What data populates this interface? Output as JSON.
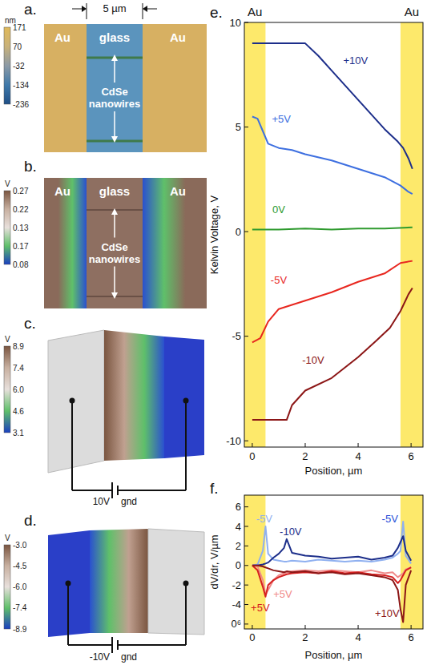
{
  "panels": [
    {
      "label": "a.",
      "texts": [
        "Au",
        "glass",
        "Au",
        "CdSe nanowires"
      ],
      "scale_label": "5 µm",
      "colorbar": {
        "unit": "nm",
        "labels": [
          "171",
          "70",
          "-32",
          "-134",
          "-236"
        ]
      }
    },
    {
      "label": "b.",
      "texts": [
        "Au",
        "glass",
        "Au",
        "CdSe nanowires"
      ],
      "colorbar": {
        "unit": "V",
        "labels": [
          "0.27",
          "0.22",
          "0.13",
          "0.17",
          "0.08"
        ]
      }
    },
    {
      "label": "c.",
      "source": "10V",
      "ground": "gnd",
      "colorbar": {
        "unit": "V",
        "labels": [
          "8.9",
          "7.4",
          "6.0",
          "4.6",
          "3.1"
        ]
      }
    },
    {
      "label": "d.",
      "source": "-10V",
      "ground": "gnd",
      "colorbar": {
        "unit": "V",
        "labels": [
          "-3.0",
          "-4.5",
          "-6.0",
          "-7.4",
          "-8.9"
        ]
      }
    }
  ],
  "chart_data": [
    {
      "type": "line",
      "label": "e.",
      "xlabel": "Position, µm",
      "ylabel": "Kelvin Voltage, V",
      "xlim": [
        -0.3,
        6.45
      ],
      "ylim": [
        -10.3,
        10
      ],
      "xticks": [
        0,
        2,
        4,
        6
      ],
      "yticks": [
        -10,
        -5,
        0,
        5,
        10
      ],
      "regions": [
        {
          "label": "Au",
          "x0": -0.3,
          "x1": 0.5
        },
        {
          "label": "Au",
          "x0": 5.6,
          "x1": 6.45
        }
      ],
      "series": [
        {
          "color": "#1c2e8a",
          "x": [
            0,
            0.5,
            1,
            1.5,
            2,
            2.5,
            3,
            3.5,
            4,
            4.5,
            5,
            5.5,
            5.7,
            5.9,
            6.05
          ],
          "values": [
            9,
            9,
            9,
            9,
            9,
            8.4,
            7.7,
            7.0,
            6.3,
            5.6,
            4.9,
            4.3,
            4.0,
            3.5,
            3.0
          ]
        },
        {
          "color": "#3d6fe0",
          "x": [
            0,
            0.2,
            0.4,
            0.6,
            1,
            1.5,
            2,
            3,
            4,
            5,
            5.6,
            5.9,
            6.05
          ],
          "values": [
            5.5,
            5.4,
            4.8,
            4.2,
            4.0,
            3.9,
            3.7,
            3.4,
            3.0,
            2.6,
            2.2,
            1.9,
            1.8
          ]
        },
        {
          "color": "#2e9a2e",
          "x": [
            0,
            1,
            2,
            3,
            4,
            5,
            6.05
          ],
          "values": [
            0.1,
            0.1,
            0.15,
            0.1,
            0.15,
            0.15,
            0.2
          ]
        },
        {
          "color": "#e8271f",
          "x": [
            0,
            0.3,
            0.6,
            1,
            2,
            3,
            4,
            5,
            5.6,
            6.05
          ],
          "values": [
            -5.3,
            -5.1,
            -4.3,
            -3.7,
            -3.3,
            -2.9,
            -2.4,
            -2.0,
            -1.5,
            -1.4
          ]
        },
        {
          "color": "#8c1616",
          "x": [
            0,
            0.5,
            1,
            1.3,
            1.5,
            2,
            3,
            4,
            4.7,
            5.2,
            5.6,
            5.9,
            6.05
          ],
          "values": [
            -9,
            -9,
            -9,
            -9,
            -8.3,
            -7.6,
            -7.0,
            -6.0,
            -5.2,
            -4.6,
            -3.8,
            -3.0,
            -2.7
          ]
        }
      ],
      "annotations": [
        {
          "text": "+10V",
          "x": 3.9,
          "y": 8.0,
          "color": "#1c2e8a"
        },
        {
          "text": "+5V",
          "x": 1.1,
          "y": 5.2,
          "color": "#3d6fe0"
        },
        {
          "text": "0V",
          "x": 1.0,
          "y": 0.9,
          "color": "#2e9a2e"
        },
        {
          "text": "-5V",
          "x": 1.0,
          "y": -2.5,
          "color": "#e8271f"
        },
        {
          "text": "-10V",
          "x": 2.3,
          "y": -6.3,
          "color": "#8c1616"
        }
      ]
    },
    {
      "type": "line",
      "label": "f.",
      "xlabel": "Position, µm",
      "ylabel": "dV/dr, V/µm",
      "xlim": [
        -0.3,
        6.45
      ],
      "ylim": [
        -6.5,
        7.2
      ],
      "xticks": [
        0,
        2,
        4,
        6
      ],
      "yticks": [
        6,
        4,
        2,
        0,
        -2,
        -4,
        {
          "value": -6,
          "label": "0⁶"
        }
      ],
      "regions": [
        {
          "x0": -0.3,
          "x1": 0.5
        },
        {
          "x0": 5.6,
          "x1": 6.45
        }
      ],
      "series": [
        {
          "color": "#8fb0f0",
          "x": [
            0,
            0.2,
            0.4,
            0.5,
            0.6,
            0.8,
            1.0,
            1.2,
            1.3,
            1.5,
            2,
            2.5,
            3,
            3.5,
            4,
            4.5,
            5,
            5.3,
            5.5,
            5.6,
            5.7,
            5.8,
            6.0
          ],
          "values": [
            0,
            0.1,
            1.5,
            4,
            1.2,
            0.6,
            0.5,
            0.4,
            0.4,
            0.5,
            0.4,
            0.6,
            0.5,
            0.4,
            0.5,
            0.4,
            0.6,
            0.8,
            1.2,
            1.5,
            4.5,
            1.0,
            0.2
          ]
        },
        {
          "color": "#1c2e8a",
          "x": [
            0,
            0.2,
            0.4,
            0.5,
            0.6,
            0.8,
            1.0,
            1.2,
            1.3,
            1.5,
            2,
            2.5,
            3,
            3.5,
            4,
            4.5,
            5,
            5.3,
            5.5,
            5.6,
            5.7,
            5.8,
            6.0
          ],
          "values": [
            0,
            0,
            0.1,
            0.2,
            0.3,
            0.8,
            1.2,
            1.8,
            2.7,
            1.3,
            1.0,
            0.9,
            0.7,
            0.8,
            0.9,
            0.6,
            0.8,
            1.0,
            1.8,
            2.4,
            3.0,
            1.5,
            0.5
          ]
        },
        {
          "color": "#f08a8a",
          "x": [
            0,
            0.2,
            0.4,
            0.5,
            0.6,
            0.8,
            1.0,
            1.2,
            1.3,
            1.5,
            2,
            2.5,
            3,
            3.5,
            4,
            4.5,
            5,
            5.3,
            5.5,
            5.6,
            5.7,
            5.8,
            6.0
          ],
          "values": [
            0,
            -0.1,
            -1.5,
            -3,
            -2.5,
            -1.5,
            -1,
            -0.8,
            -0.7,
            -0.6,
            -0.5,
            -0.6,
            -0.5,
            -0.6,
            -0.7,
            -0.5,
            -0.8,
            -0.7,
            -1.2,
            -1.0,
            -0.8,
            -0.4,
            -0.2
          ]
        },
        {
          "color": "#d62020",
          "x": [
            0,
            0.2,
            0.4,
            0.5,
            0.6,
            0.8,
            1.0,
            1.2,
            1.3,
            1.5,
            2,
            2.5,
            3,
            3.5,
            4,
            4.5,
            5,
            5.3,
            5.5,
            5.6,
            5.7,
            5.8,
            6.0
          ],
          "values": [
            0,
            -0.5,
            -2.2,
            -3.2,
            -2,
            -1.5,
            -1.2,
            -1,
            -0.9,
            -0.8,
            -0.7,
            -0.8,
            -0.6,
            -0.8,
            -0.7,
            -0.9,
            -1,
            -1.2,
            -1.8,
            -1.5,
            -1,
            -0.5,
            -0.2
          ]
        },
        {
          "color": "#8c1616",
          "x": [
            0,
            0.2,
            0.4,
            0.5,
            0.6,
            0.8,
            1.0,
            1.2,
            1.3,
            1.5,
            2,
            2.5,
            3,
            3.5,
            4,
            4.5,
            5,
            5.3,
            5.5,
            5.6,
            5.7,
            5.8,
            6.0
          ],
          "values": [
            0,
            0,
            -0.1,
            -0.2,
            -0.3,
            -0.5,
            -0.6,
            -0.7,
            -0.6,
            -0.7,
            -0.6,
            -0.8,
            -0.7,
            -0.9,
            -0.8,
            -1,
            -1.2,
            -1.5,
            -2.5,
            -4.5,
            -5.8,
            -2,
            -0.5
          ]
        }
      ],
      "annotations": [
        {
          "text": "-5V",
          "x": 0.45,
          "y": 4.4,
          "color": "#8fb0f0"
        },
        {
          "text": "-10V",
          "x": 1.45,
          "y": 3.1,
          "color": "#1c2e8a"
        },
        {
          "text": "-5V",
          "x": 5.2,
          "y": 4.4,
          "color": "#2a4fd8"
        },
        {
          "text": "+5V",
          "x": 0.3,
          "y": -4.7,
          "color": "#d62020"
        },
        {
          "text": "+5V",
          "x": 1.15,
          "y": -3.3,
          "color": "#f08a8a"
        },
        {
          "text": "+10V",
          "x": 5.1,
          "y": -5.3,
          "color": "#8c1616"
        }
      ]
    }
  ]
}
